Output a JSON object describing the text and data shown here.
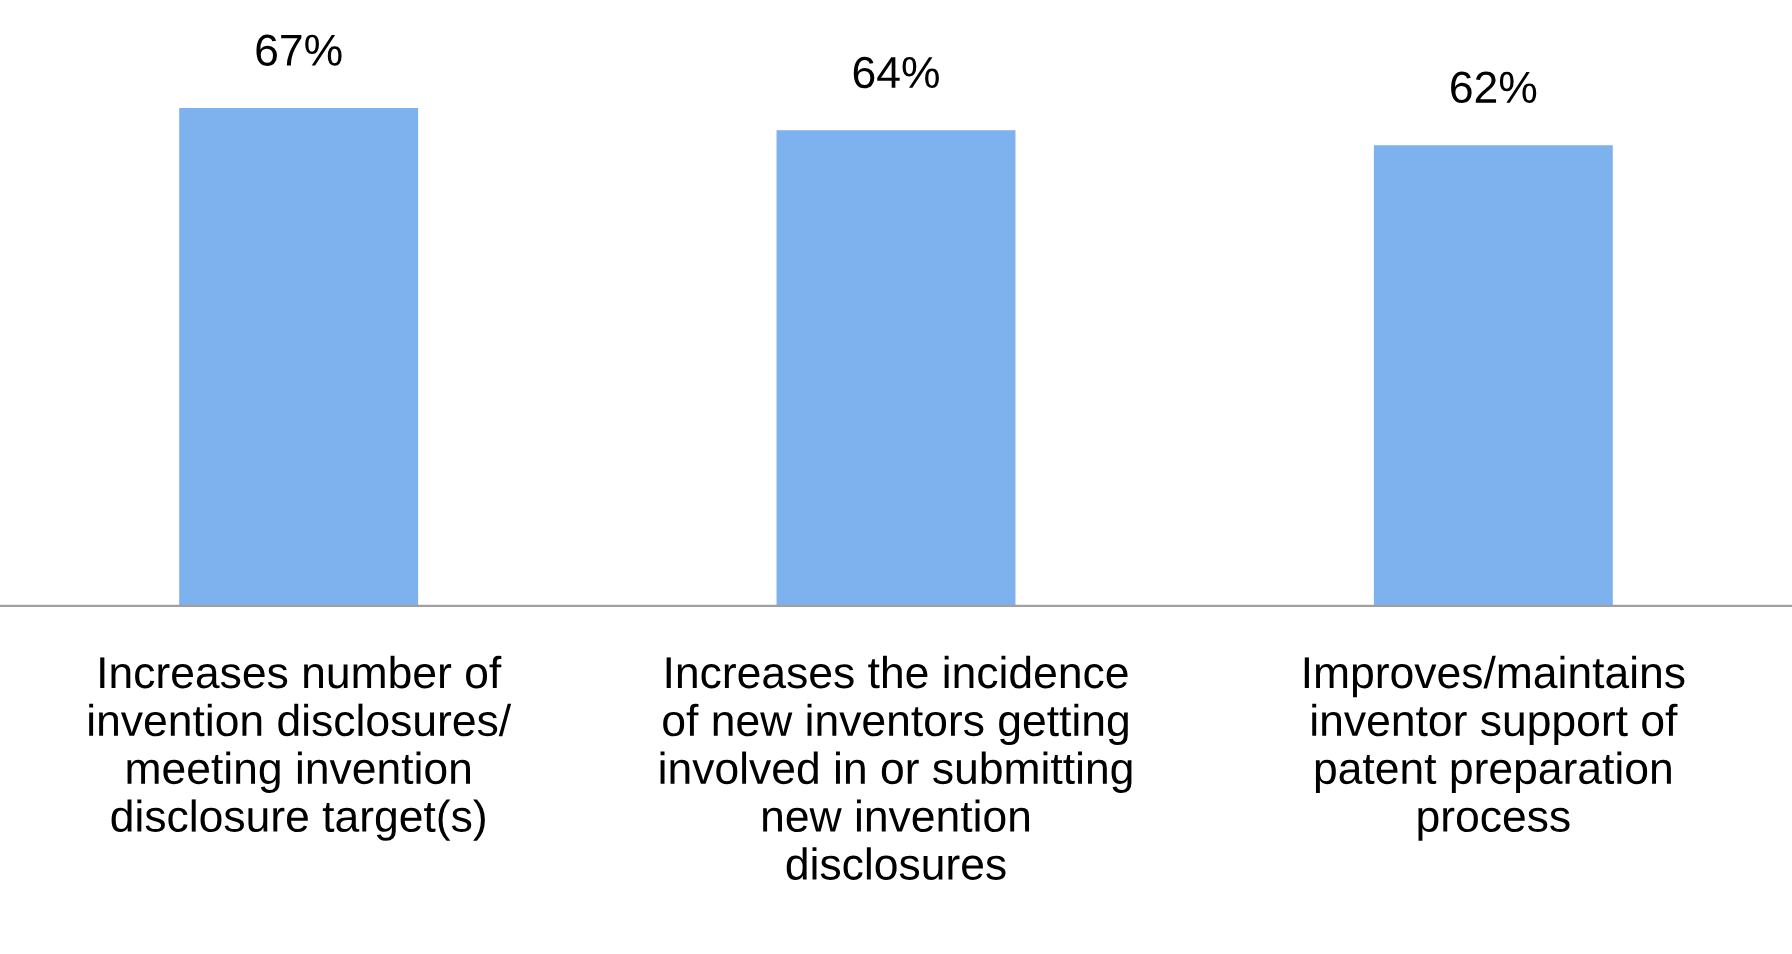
{
  "chart_data": {
    "type": "bar",
    "categories": [
      "Increases number of\ninvention disclosures/\nmeeting invention\ndisclosure target(s)",
      "Increases the incidence\nof new inventors getting\ninvolved in or submitting\nnew invention\ndisclosures",
      "Improves/maintains\ninventor support of\npatent preparation\nprocess"
    ],
    "values": [
      67,
      64,
      62
    ],
    "value_labels": [
      "67%",
      "64%",
      "62%"
    ],
    "color": "#7eb2ee",
    "tick_labels": "x",
    "grid": false,
    "legend": false
  }
}
